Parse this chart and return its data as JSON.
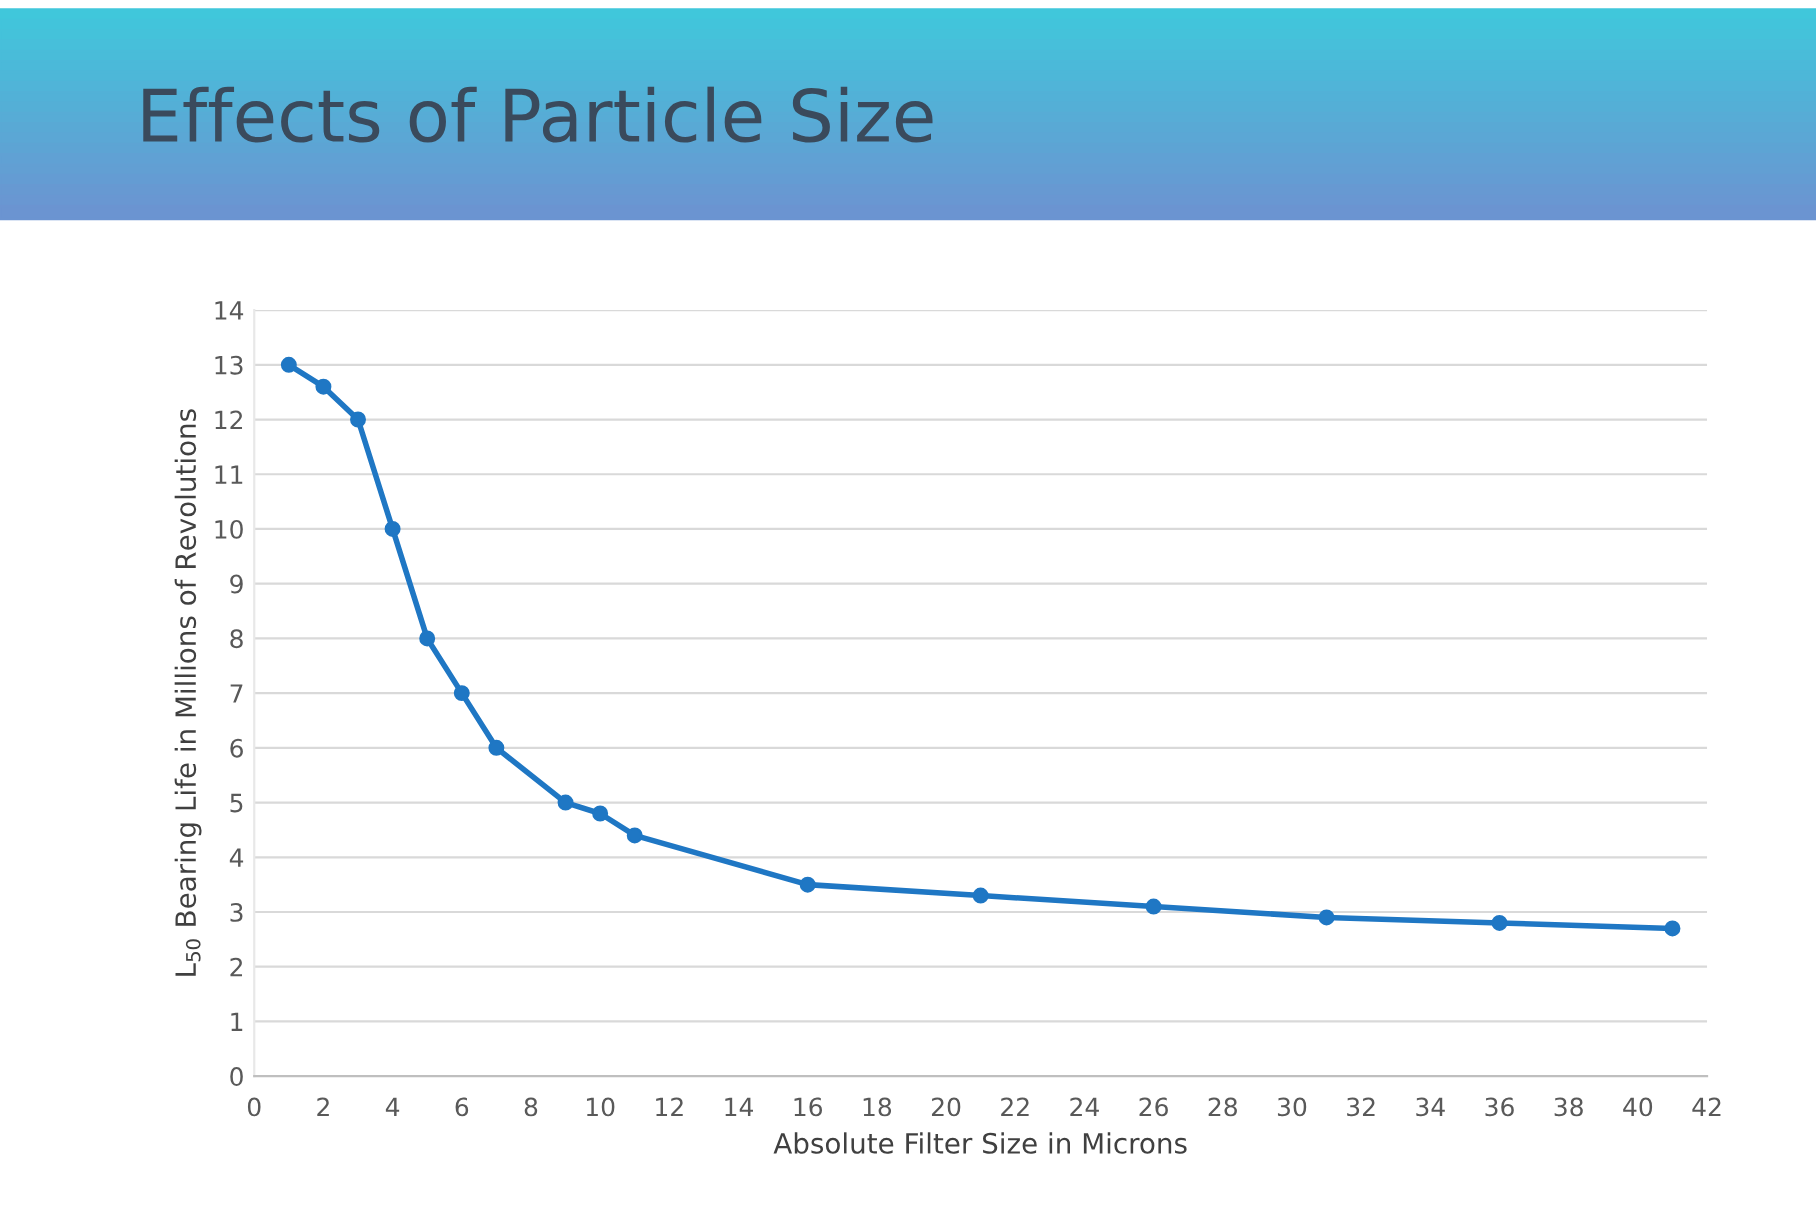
{
  "chart_data": {
    "type": "line",
    "title": "Effects of Particle Size",
    "xlabel": "Absolute Filter Size in Microns",
    "ylabel": "L$_{50}$ Bearing Life in Millions of Revolutions",
    "x": [
      1,
      2,
      3,
      4,
      5,
      6,
      7,
      9,
      10,
      11,
      16,
      21,
      26,
      31,
      36,
      41
    ],
    "series": [
      {
        "color": "#1f77c4",
        "values": [
          13,
          12.6,
          12,
          10,
          8,
          7,
          6,
          5,
          4.8,
          4.4,
          3.5,
          3.3,
          3.1,
          2.9,
          2.8,
          2.7
        ]
      }
    ],
    "xlim": [
      0,
      42
    ],
    "xticks": [
      0,
      2,
      4,
      6,
      8,
      10,
      12,
      14,
      16,
      18,
      20,
      22,
      24,
      26,
      28,
      30,
      32,
      34,
      36,
      38,
      40,
      42
    ],
    "ylim": [
      0,
      14
    ],
    "yticks": [
      0,
      1,
      2,
      3,
      4,
      5,
      6,
      7,
      8,
      9,
      10,
      11,
      12,
      13,
      14
    ],
    "grid": "y",
    "marker": "circle",
    "line_style": "solid",
    "legend": false
  }
}
